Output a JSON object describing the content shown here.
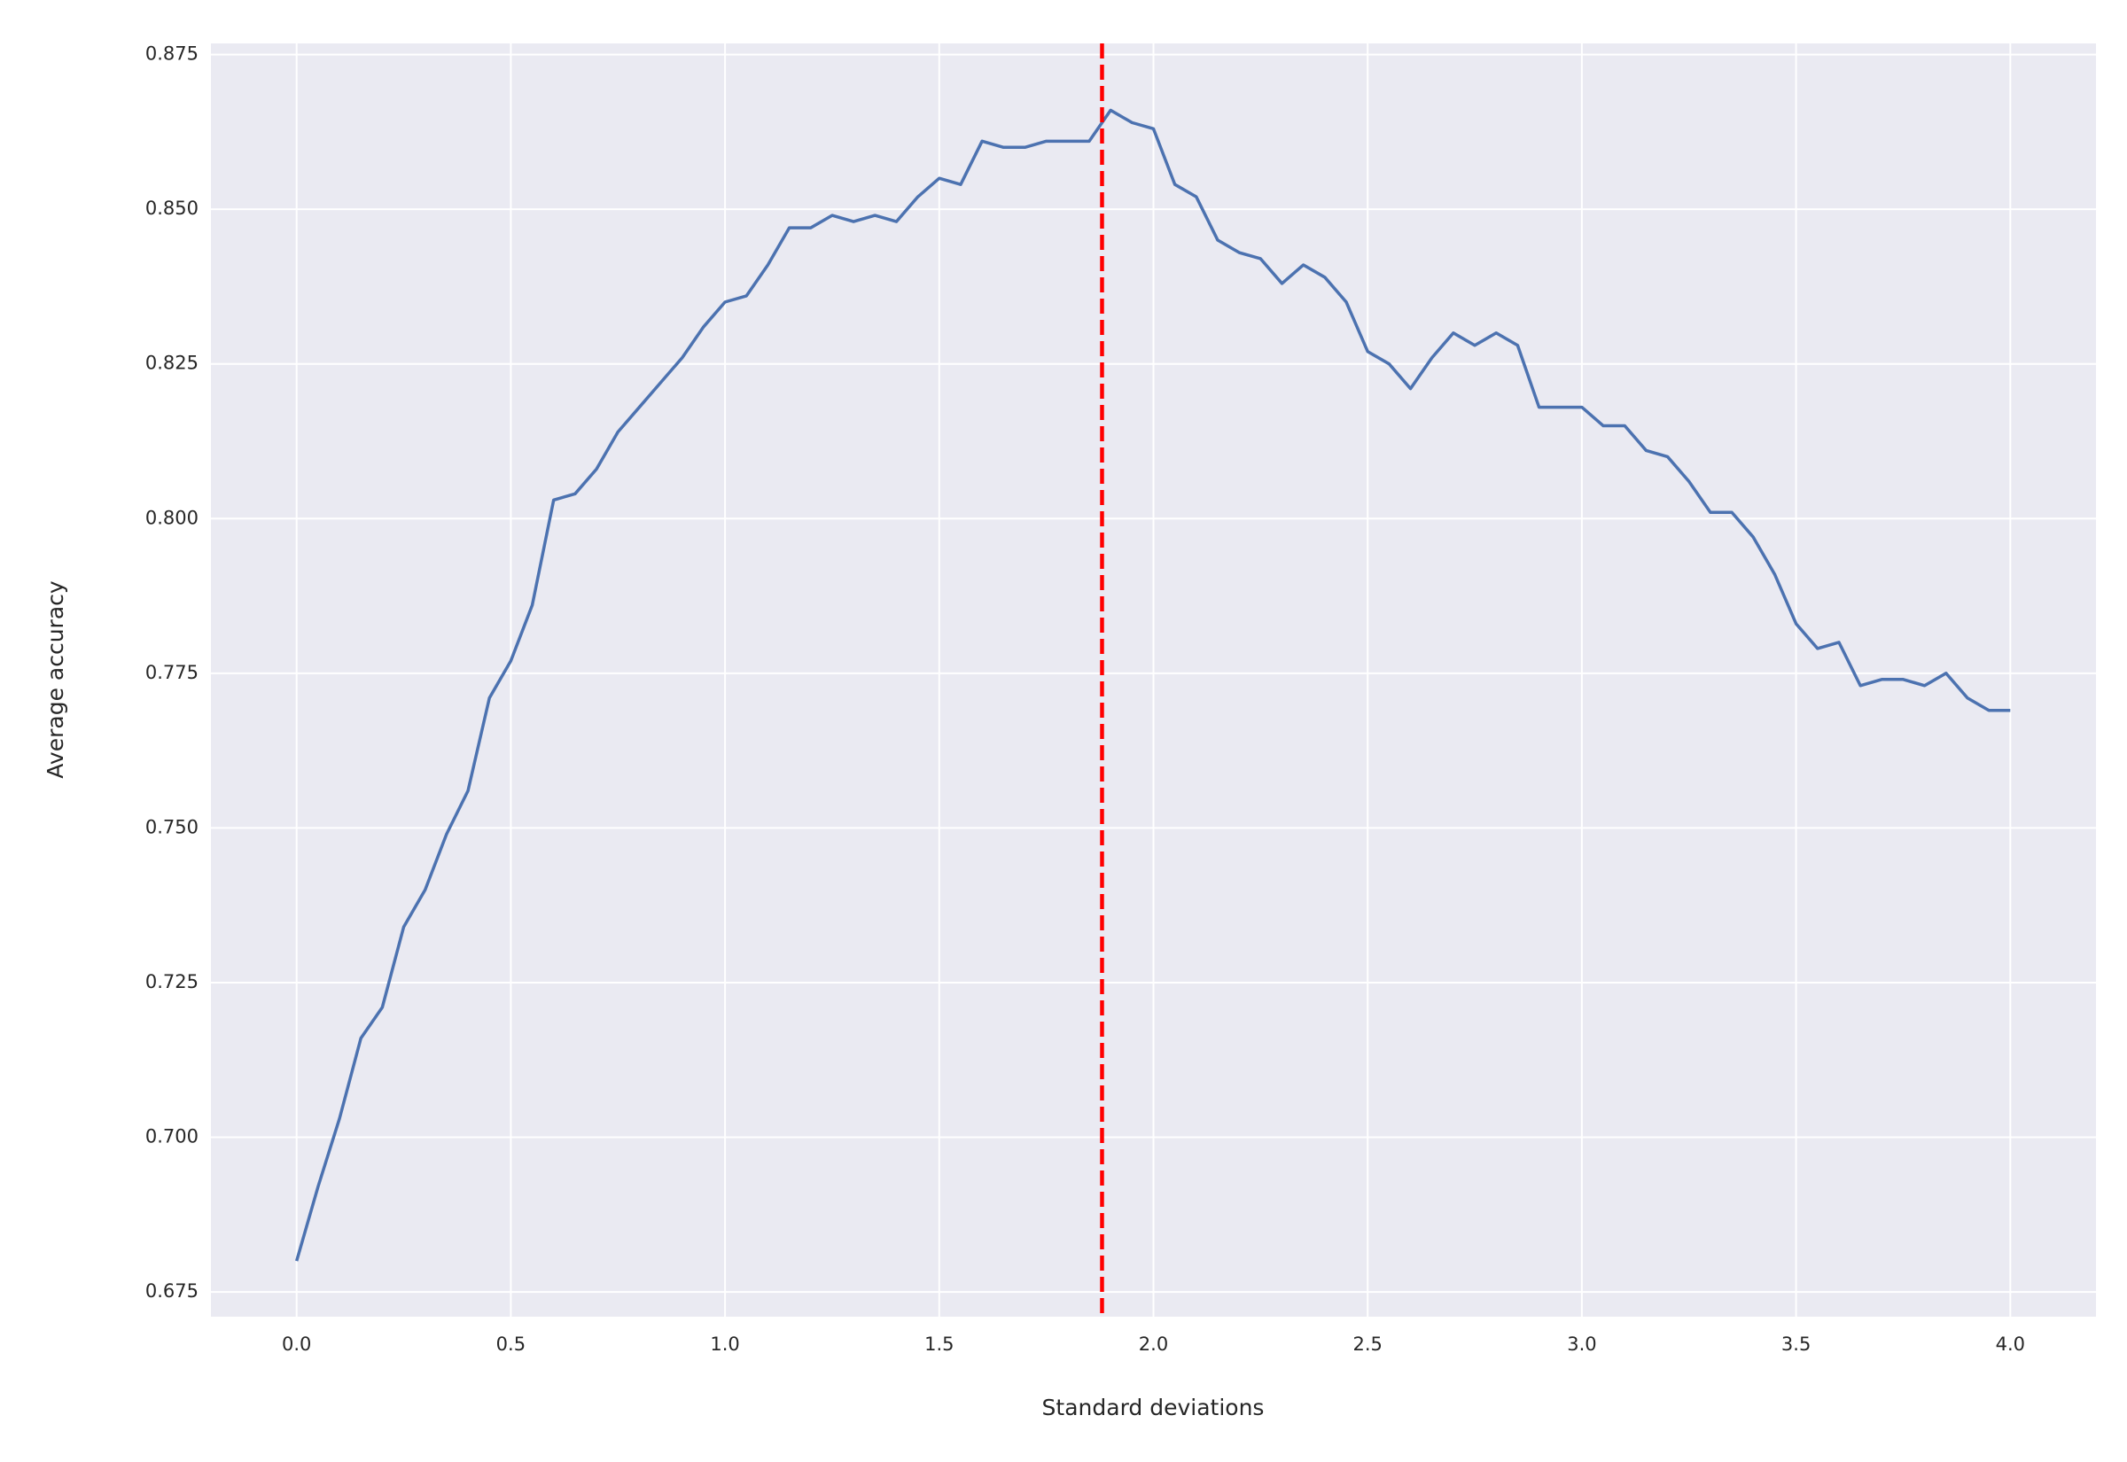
{
  "chart_data": {
    "type": "line",
    "xlabel": "Standard deviations",
    "ylabel": "Average accuracy",
    "x": [
      0,
      0.05,
      0.1,
      0.15,
      0.2,
      0.25,
      0.3,
      0.35,
      0.4,
      0.45,
      0.5,
      0.55,
      0.6,
      0.65,
      0.7,
      0.75,
      0.8,
      0.85,
      0.9,
      0.95,
      1.0,
      1.05,
      1.1,
      1.15,
      1.2,
      1.25,
      1.3,
      1.35,
      1.4,
      1.45,
      1.5,
      1.55,
      1.6,
      1.65,
      1.7,
      1.75,
      1.8,
      1.85,
      1.9,
      1.95,
      2.0,
      2.05,
      2.1,
      2.15,
      2.2,
      2.25,
      2.3,
      2.35,
      2.4,
      2.45,
      2.5,
      2.55,
      2.6,
      2.65,
      2.7,
      2.75,
      2.8,
      2.85,
      2.9,
      2.95,
      3.0,
      3.05,
      3.1,
      3.15,
      3.2,
      3.25,
      3.3,
      3.35,
      3.4,
      3.45,
      3.5,
      3.55,
      3.6,
      3.65,
      3.7,
      3.75,
      3.8,
      3.85,
      3.9,
      3.95,
      4.0
    ],
    "series": [
      {
        "name": "Average accuracy",
        "color": "#4c72b0",
        "values": [
          0.68,
          0.692,
          0.703,
          0.716,
          0.721,
          0.734,
          0.74,
          0.749,
          0.756,
          0.771,
          0.777,
          0.786,
          0.803,
          0.804,
          0.808,
          0.814,
          0.818,
          0.822,
          0.826,
          0.831,
          0.835,
          0.836,
          0.841,
          0.847,
          0.847,
          0.849,
          0.848,
          0.849,
          0.848,
          0.852,
          0.855,
          0.854,
          0.861,
          0.86,
          0.86,
          0.861,
          0.861,
          0.861,
          0.866,
          0.864,
          0.863,
          0.854,
          0.852,
          0.845,
          0.843,
          0.842,
          0.838,
          0.841,
          0.839,
          0.835,
          0.827,
          0.825,
          0.821,
          0.826,
          0.83,
          0.828,
          0.83,
          0.828,
          0.818,
          0.818,
          0.818,
          0.815,
          0.815,
          0.811,
          0.81,
          0.806,
          0.801,
          0.801,
          0.797,
          0.791,
          0.783,
          0.779,
          0.78,
          0.773,
          0.774,
          0.774,
          0.773,
          0.775,
          0.771,
          0.769,
          0.769
        ]
      }
    ],
    "vline": {
      "x": 1.88,
      "color": "#ff0000",
      "dashed": true
    },
    "xlim": [
      -0.2,
      4.2
    ],
    "xticks": [
      {
        "value": 0,
        "label": "0.0"
      },
      0.5,
      {
        "value": 1,
        "label": "1.0"
      },
      1.5,
      {
        "value": 2,
        "label": "2.0"
      },
      2.5,
      {
        "value": 3,
        "label": "3.0"
      },
      3.5,
      {
        "value": 4,
        "label": "4.0"
      }
    ],
    "ylim": [
      0.671,
      0.8768
    ],
    "yticks": [
      0.675,
      {
        "value": 0.7,
        "label": "0.700"
      },
      0.725,
      {
        "value": 0.75,
        "label": "0.750"
      },
      0.775,
      {
        "value": 0.8,
        "label": "0.800"
      },
      0.825,
      {
        "value": 0.85,
        "label": "0.850"
      },
      0.875
    ],
    "grid": true
  }
}
